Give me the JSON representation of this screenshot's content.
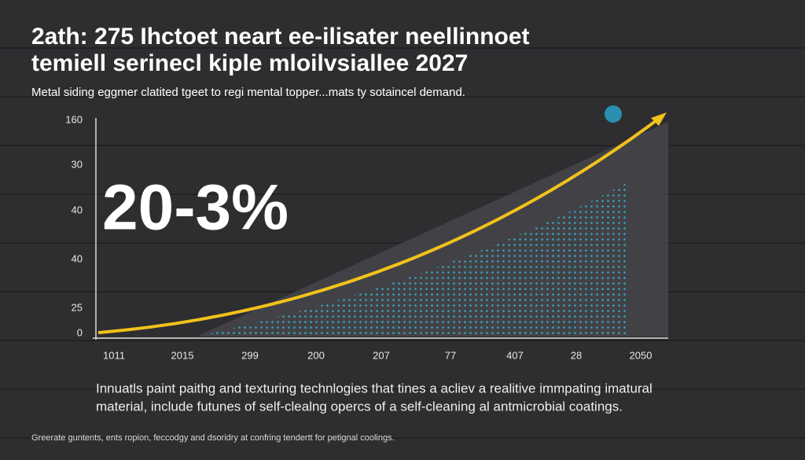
{
  "header": {
    "title_lines": [
      "2ath: 275 Ihctoet neart ee-ilisater neellinnoet",
      "temiell serinecl kiple mloilvsiallee 2027"
    ],
    "subtitle": "Metal siding eggmer clatited tgeet to regi mental topper...mats ty sotaincel demand."
  },
  "figure": {
    "y_labels": [
      "160",
      "30",
      "40",
      "40",
      "25",
      "0"
    ],
    "x_labels": [
      "1011",
      "2015",
      "299",
      "200",
      "207",
      "77",
      "407",
      "28",
      "2050"
    ],
    "big_stat": "20-3%"
  },
  "body": {
    "lines": [
      "Innuatls paint paithg and texturing technlogies that tines a acliev a realitive immpating imatural",
      "material, include futunes of self-clealng opercs of a self-cleaning al antmicrobial coatings."
    ]
  },
  "footer": "Greerate guntents, ents ropion, feccodgy and dsoridry at confring tendertt for petignal coolings."
}
